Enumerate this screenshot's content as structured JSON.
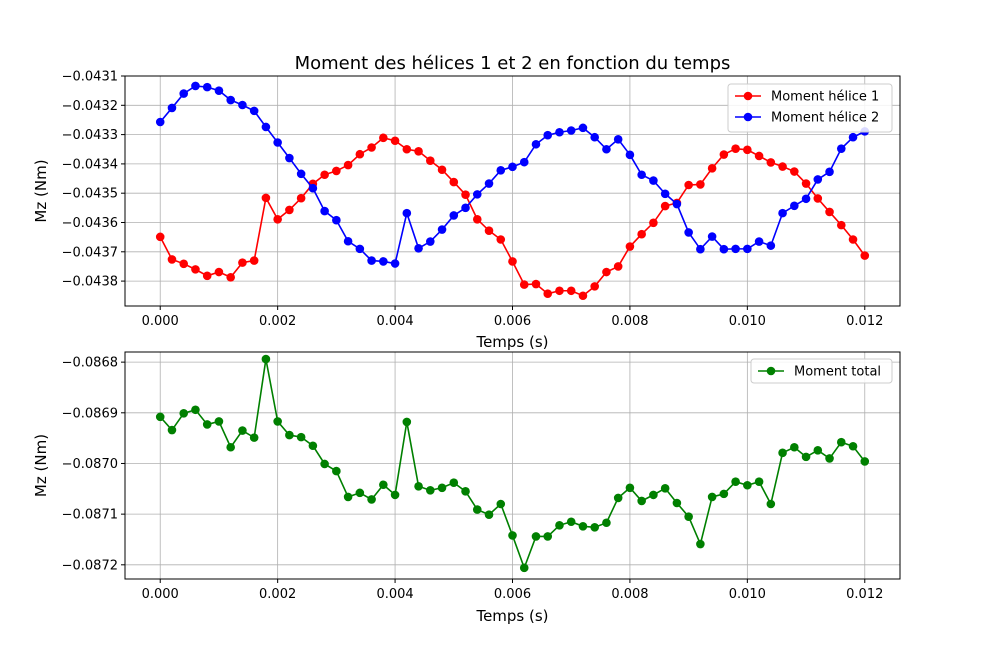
{
  "charts": [
    {
      "title": "Moment des hélices 1 et 2 en fonction du temps",
      "xlabel": "Temps (s)",
      "ylabel": "Mz (Nm)",
      "xticks": [
        "0.000",
        "0.002",
        "0.004",
        "0.006",
        "0.008",
        "0.010",
        "0.012"
      ],
      "yticks": [
        "−0.0431",
        "−0.0432",
        "−0.0433",
        "−0.0434",
        "−0.0435",
        "−0.0436",
        "−0.0437",
        "−0.0438"
      ],
      "legend": [
        "Moment hélice 1",
        "Moment hélice 2"
      ]
    },
    {
      "title": "",
      "xlabel": "Temps (s)",
      "ylabel": "Mz (Nm)",
      "xticks": [
        "0.000",
        "0.002",
        "0.004",
        "0.006",
        "0.008",
        "0.010",
        "0.012"
      ],
      "yticks": [
        "−0.0868",
        "−0.0869",
        "−0.0870",
        "−0.0871",
        "−0.0872"
      ],
      "legend": [
        "Moment total"
      ]
    }
  ],
  "chart_data": [
    {
      "type": "line",
      "title": "Moment des hélices 1 et 2 en fonction du temps",
      "xlabel": "Temps (s)",
      "ylabel": "Mz (Nm)",
      "xlim": [
        -0.0006,
        0.0126
      ],
      "ylim": [
        -0.043885,
        -0.0431
      ],
      "grid": true,
      "legend_position": "top-right",
      "x": [
        0.0,
        0.0002,
        0.0004,
        0.0006,
        0.0008,
        0.001,
        0.0012,
        0.0014,
        0.0016,
        0.0018,
        0.002,
        0.0022,
        0.0024,
        0.0026,
        0.0028,
        0.003,
        0.0032,
        0.0034,
        0.0036,
        0.0038,
        0.004,
        0.0042,
        0.0044,
        0.0046,
        0.0048,
        0.005,
        0.0052,
        0.0054,
        0.0056,
        0.0058,
        0.006,
        0.0062,
        0.0064,
        0.0066,
        0.0068,
        0.007,
        0.0072,
        0.0074,
        0.0076,
        0.0078,
        0.008,
        0.0082,
        0.0084,
        0.0086,
        0.0088,
        0.009,
        0.0092,
        0.0094,
        0.0096,
        0.0098,
        0.01,
        0.0102,
        0.0104,
        0.0106,
        0.0108,
        0.011,
        0.0112,
        0.0114,
        0.0116,
        0.0118,
        0.012
      ],
      "series": [
        {
          "name": "Moment hélice 1",
          "color": "#ff0000",
          "values": [
            -0.043649,
            -0.043726,
            -0.043741,
            -0.04376,
            -0.043782,
            -0.043769,
            -0.043787,
            -0.043737,
            -0.04373,
            -0.043516,
            -0.043589,
            -0.043557,
            -0.043517,
            -0.043468,
            -0.043437,
            -0.043424,
            -0.043404,
            -0.043367,
            -0.043344,
            -0.043311,
            -0.043321,
            -0.04335,
            -0.043357,
            -0.043389,
            -0.04342,
            -0.043462,
            -0.043505,
            -0.043589,
            -0.043628,
            -0.043658,
            -0.043733,
            -0.043812,
            -0.04381,
            -0.043843,
            -0.043833,
            -0.043833,
            -0.04385,
            -0.043818,
            -0.043769,
            -0.04375,
            -0.043682,
            -0.04364,
            -0.043601,
            -0.043544,
            -0.043533,
            -0.043472,
            -0.04347,
            -0.043415,
            -0.043368,
            -0.043348,
            -0.043352,
            -0.043373,
            -0.043395,
            -0.043409,
            -0.043426,
            -0.043467,
            -0.043518,
            -0.043564,
            -0.043609,
            -0.043658,
            -0.043713
          ]
        },
        {
          "name": "Moment hélice 2",
          "color": "#0000ff",
          "values": [
            -0.043257,
            -0.043209,
            -0.04316,
            -0.043134,
            -0.043138,
            -0.04315,
            -0.043182,
            -0.043199,
            -0.043219,
            -0.043274,
            -0.043327,
            -0.04338,
            -0.043434,
            -0.043483,
            -0.043561,
            -0.043592,
            -0.043664,
            -0.04369,
            -0.04373,
            -0.043733,
            -0.04374,
            -0.043568,
            -0.043688,
            -0.043665,
            -0.043624,
            -0.043576,
            -0.04355,
            -0.043504,
            -0.043467,
            -0.043422,
            -0.04341,
            -0.043394,
            -0.043333,
            -0.043302,
            -0.043292,
            -0.043286,
            -0.043277,
            -0.043309,
            -0.04335,
            -0.043316,
            -0.043369,
            -0.043437,
            -0.043457,
            -0.043502,
            -0.043537,
            -0.043634,
            -0.043691,
            -0.043648,
            -0.043691,
            -0.04369,
            -0.04369,
            -0.043665,
            -0.043679,
            -0.043568,
            -0.043543,
            -0.043519,
            -0.043453,
            -0.043427,
            -0.043348,
            -0.043309,
            -0.043289
          ]
        }
      ]
    },
    {
      "type": "line",
      "title": "",
      "xlabel": "Temps (s)",
      "ylabel": "Mz (Nm)",
      "xlim": [
        -0.0006,
        0.0126
      ],
      "ylim": [
        -0.087228,
        -0.08678
      ],
      "grid": true,
      "legend_position": "top-right",
      "x": [
        0.0,
        0.0002,
        0.0004,
        0.0006,
        0.0008,
        0.001,
        0.0012,
        0.0014,
        0.0016,
        0.0018,
        0.002,
        0.0022,
        0.0024,
        0.0026,
        0.0028,
        0.003,
        0.0032,
        0.0034,
        0.0036,
        0.0038,
        0.004,
        0.0042,
        0.0044,
        0.0046,
        0.0048,
        0.005,
        0.0052,
        0.0054,
        0.0056,
        0.0058,
        0.006,
        0.0062,
        0.0064,
        0.0066,
        0.0068,
        0.007,
        0.0072,
        0.0074,
        0.0076,
        0.0078,
        0.008,
        0.0082,
        0.0084,
        0.0086,
        0.0088,
        0.009,
        0.0092,
        0.0094,
        0.0096,
        0.0098,
        0.01,
        0.0102,
        0.0104,
        0.0106,
        0.0108,
        0.011,
        0.0112,
        0.0114,
        0.0116,
        0.0118,
        0.012
      ],
      "series": [
        {
          "name": "Moment total",
          "color": "#008000",
          "values": [
            -0.086908,
            -0.086934,
            -0.086901,
            -0.086894,
            -0.086923,
            -0.086917,
            -0.086968,
            -0.086935,
            -0.086949,
            -0.086794,
            -0.086917,
            -0.086944,
            -0.086948,
            -0.086965,
            -0.087001,
            -0.087015,
            -0.087066,
            -0.087058,
            -0.087071,
            -0.087042,
            -0.087062,
            -0.086918,
            -0.087045,
            -0.087053,
            -0.087048,
            -0.087038,
            -0.087055,
            -0.087091,
            -0.087101,
            -0.08708,
            -0.087142,
            -0.087206,
            -0.087144,
            -0.087144,
            -0.087122,
            -0.087115,
            -0.087124,
            -0.087126,
            -0.087117,
            -0.087068,
            -0.087048,
            -0.087074,
            -0.087062,
            -0.087049,
            -0.087078,
            -0.087105,
            -0.087159,
            -0.087066,
            -0.08706,
            -0.087036,
            -0.087043,
            -0.087036,
            -0.08708,
            -0.086979,
            -0.086968,
            -0.086987,
            -0.086974,
            -0.08699,
            -0.086958,
            -0.086966,
            -0.086996
          ]
        }
      ]
    }
  ]
}
